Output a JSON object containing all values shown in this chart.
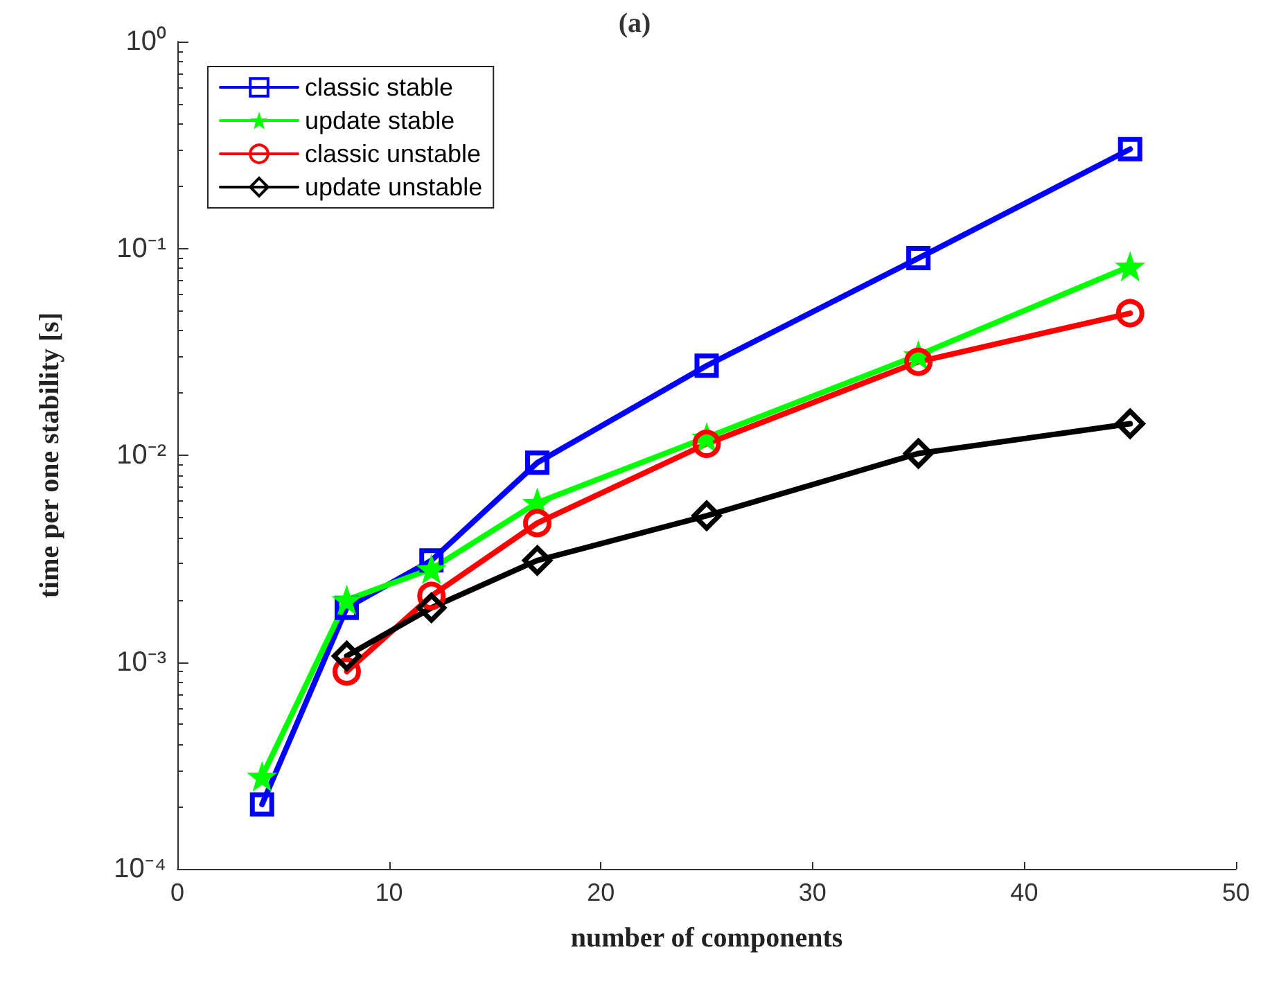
{
  "chart_data": {
    "type": "line",
    "title": "(a)",
    "xlabel": "number of components",
    "ylabel": "time per one stability [s]",
    "x": [
      4,
      8,
      12,
      17,
      25,
      35,
      45
    ],
    "series": [
      {
        "name": "classic stable",
        "color": "#0000ff",
        "marker": "square",
        "values": [
          0.000205,
          0.00183,
          0.0031,
          0.0092,
          0.0271,
          0.0897,
          0.302
        ]
      },
      {
        "name": "update stable",
        "color": "#00ff00",
        "marker": "star",
        "values": [
          0.00028,
          0.002,
          0.00282,
          0.0059,
          0.0122,
          0.0305,
          0.082
        ]
      },
      {
        "name": "classic unstable",
        "color": "#ff0000",
        "marker": "circle",
        "values": [
          null,
          0.0009,
          0.00209,
          0.0047,
          0.01136,
          0.0283,
          0.0486
        ]
      },
      {
        "name": "update unstable",
        "color": "#000000",
        "marker": "diamond",
        "values": [
          null,
          0.00107,
          0.00183,
          0.0031,
          0.0051,
          0.0102,
          0.0142
        ]
      }
    ],
    "xlim": [
      0,
      50
    ],
    "xticks": [
      0,
      10,
      20,
      30,
      40,
      50
    ],
    "ylim": [
      0.0001,
      1
    ],
    "yticks": [
      {
        "value": 0.0001,
        "label": "10⁻⁴"
      },
      {
        "value": 0.001,
        "label": "10⁻³"
      },
      {
        "value": 0.01,
        "label": "10⁻²"
      },
      {
        "value": 0.1,
        "label": "10⁻¹"
      },
      {
        "value": 1,
        "label": "10⁰"
      }
    ],
    "log": "y",
    "grid": false,
    "legend": "top left",
    "line_style": "solid"
  }
}
